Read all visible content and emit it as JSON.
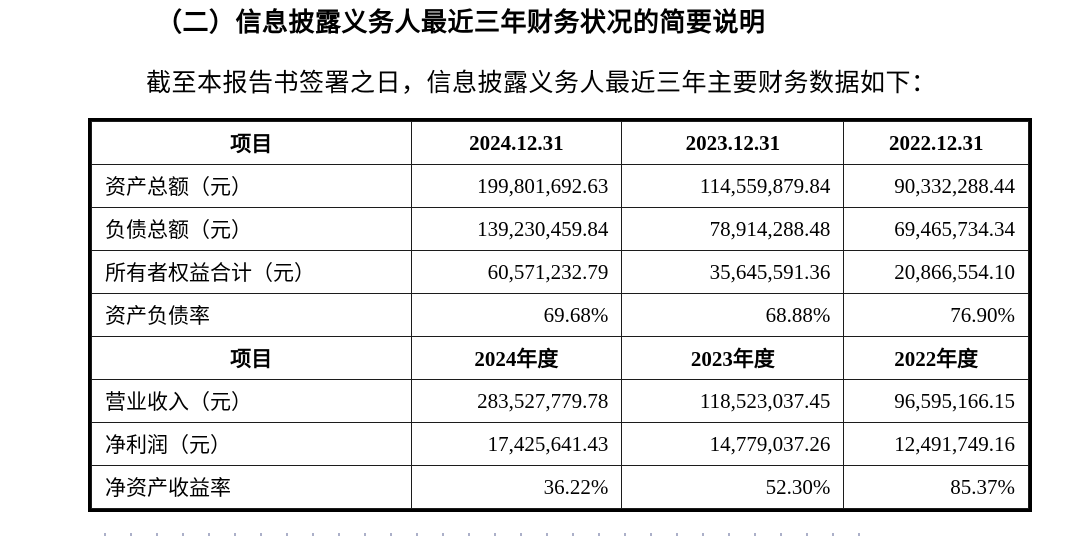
{
  "page": {
    "heading": "（二）信息披露义务人最近三年财务状况的简要说明",
    "intro": "截至本报告书签署之日，信息披露义务人最近三年主要财务数据如下："
  },
  "table": {
    "sections": [
      {
        "header": [
          "项目",
          "2024.12.31",
          "2023.12.31",
          "2022.12.31"
        ],
        "rows": [
          {
            "label": "资产总额（元）",
            "values": [
              "199,801,692.63",
              "114,559,879.84",
              "90,332,288.44"
            ]
          },
          {
            "label": "负债总额（元）",
            "values": [
              "139,230,459.84",
              "78,914,288.48",
              "69,465,734.34"
            ]
          },
          {
            "label": "所有者权益合计（元）",
            "values": [
              "60,571,232.79",
              "35,645,591.36",
              "20,866,554.10"
            ]
          },
          {
            "label": "资产负债率",
            "values": [
              "69.68%",
              "68.88%",
              "76.90%"
            ]
          }
        ]
      },
      {
        "header": [
          "项目",
          "2024年度",
          "2023年度",
          "2022年度"
        ],
        "rows": [
          {
            "label": "营业收入（元）",
            "values": [
              "283,527,779.78",
              "118,523,037.45",
              "96,595,166.15"
            ]
          },
          {
            "label": "净利润（元）",
            "values": [
              "17,425,641.43",
              "14,779,037.26",
              "12,491,749.16"
            ]
          },
          {
            "label": "净资产收益率",
            "values": [
              "36.22%",
              "52.30%",
              "85.37%"
            ]
          }
        ]
      }
    ]
  },
  "colors": {
    "background": "#ffffff",
    "text": "#000000",
    "table_border": "#000000"
  }
}
